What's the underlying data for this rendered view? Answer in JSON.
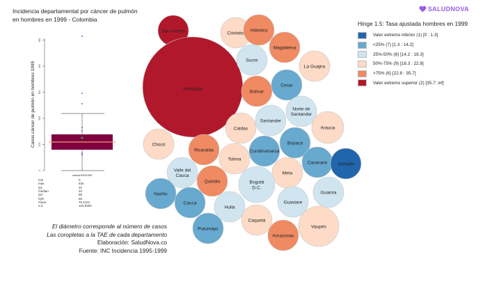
{
  "title": "Incidencia  departamental por cáncer de pulmón\nen hombres en 1999 - Colombia",
  "logo": {
    "text": "SALUDNOVA",
    "icon": "heart-icon",
    "color": "#9b5de5"
  },
  "legend": {
    "title": "Hinge 1.5: Tasa ajustada hombres en 1999",
    "items": [
      {
        "label": "Valor extremo inferior (1) [0 : 1.3]",
        "color": "#2166ac"
      },
      {
        "label": "<25% (7) [1.3 : 14.2]",
        "color": "#67a9cf"
      },
      {
        "label": "25%-50% (8) [14.2 : 18.3]",
        "color": "#d1e5f0"
      },
      {
        "label": "50%-75% (9) [18.3 : 22.8]",
        "color": "#fddbc7"
      },
      {
        "label": ">75% (6) [22.8 : 35.7]",
        "color": "#ef8a62"
      },
      {
        "label": "Valor extremo superior (2) [35.7: inf]",
        "color": "#b2182b"
      }
    ]
  },
  "caption": {
    "lines": [
      "El diámetro corresponde al número de casos",
      "Las coropletas a la TAE de cada departamento",
      "Elaboración: SaludNova.co",
      "Fuente: INC Incidencia 1995-1999"
    ]
  },
  "chart_data": [
    {
      "type": "boxplot",
      "ylabel": "Casos cáncer de pulmón en hombres 1999",
      "xlabel": "casosHOM1999",
      "yticks": [
        "0",
        "100",
        "200",
        "300",
        "400",
        "500"
      ],
      "box_color": "#800040",
      "stats": [
        {
          "name": "min",
          "value": "0"
        },
        {
          "name": "max",
          "value": "534"
        },
        {
          "name": "Q1",
          "value": "22"
        },
        {
          "name": "median",
          "value": "33"
        },
        {
          "name": "Q3",
          "value": "88"
        },
        {
          "name": "IQR",
          "value": "66"
        },
        {
          "name": "mean",
          "value": "75.2121"
        },
        {
          "name": "s.d.",
          "value": "103.8300"
        }
      ],
      "outliers": [
        534,
        343,
        297
      ]
    },
    {
      "type": "bubble",
      "note": "bubble size = cases; color = adjusted rate class",
      "bubbles": [
        {
          "label": "San Andrés",
          "class": 5
        },
        {
          "label": "Antioquia",
          "class": 5
        },
        {
          "label": "Córdoba",
          "class": 3
        },
        {
          "label": "Atlántico",
          "class": 4
        },
        {
          "label": "Sucre",
          "class": 2
        },
        {
          "label": "Magdalena",
          "class": 4
        },
        {
          "label": "La Guajira",
          "class": 3
        },
        {
          "label": "Cesar",
          "class": 1
        },
        {
          "label": "Bolívar",
          "class": 4
        },
        {
          "label": "Norte de\nSantander",
          "class": 2
        },
        {
          "label": "Santander",
          "class": 2
        },
        {
          "label": "Arauca",
          "class": 3
        },
        {
          "label": "Caldas",
          "class": 3
        },
        {
          "label": "Boyacá",
          "class": 1
        },
        {
          "label": "Chocó",
          "class": 3
        },
        {
          "label": "Risaralda",
          "class": 4
        },
        {
          "label": "Cundinamarca",
          "class": 1
        },
        {
          "label": "Tolima",
          "class": 3
        },
        {
          "label": "Casanare",
          "class": 1
        },
        {
          "label": "Vichada",
          "class": 0
        },
        {
          "label": "Valle del\nCauca",
          "class": 2
        },
        {
          "label": "Meta",
          "class": 3
        },
        {
          "label": "Quindío",
          "class": 4
        },
        {
          "label": "Bogotá\nD.C.",
          "class": 2
        },
        {
          "label": "Guainía",
          "class": 2
        },
        {
          "label": "Nariño",
          "class": 1
        },
        {
          "label": "Cauca",
          "class": 1
        },
        {
          "label": "Guaviare",
          "class": 2
        },
        {
          "label": "Huila",
          "class": 2
        },
        {
          "label": "Caquetá",
          "class": 3
        },
        {
          "label": "Vaupés",
          "class": 3
        },
        {
          "label": "Putumayo",
          "class": 1
        },
        {
          "label": "Amazonas",
          "class": 4
        }
      ]
    }
  ]
}
